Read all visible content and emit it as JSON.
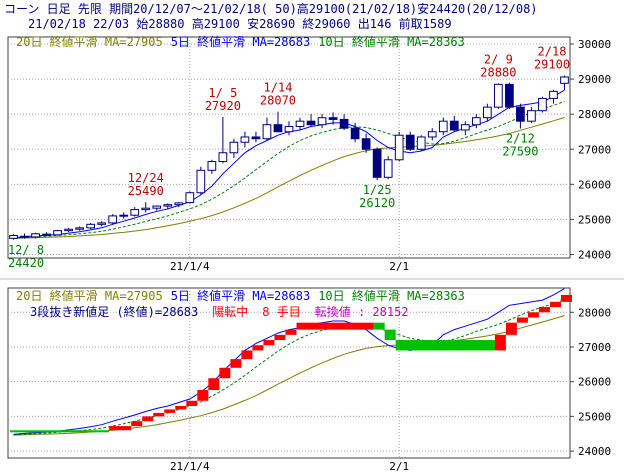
{
  "header": {
    "line1": "コーン 日足 先限 期間20/12/07～21/02/18( 50)高29100(21/02/18)安24420(20/12/08)",
    "line2": "21/02/18 22/03 始28880 高29100 安28690 終29060 出146 前取1589"
  },
  "colors": {
    "header_bg": "#f4f4f4",
    "text": "#000080",
    "ma20": "#808000",
    "ma5": "#0000ff",
    "ma10": "#008000",
    "up_candle": "#ffffff",
    "down_candle": "#000080",
    "brick_up": "#ff0000",
    "brick_down": "#00c000",
    "annot_high": "#c00000",
    "annot_low": "#008000",
    "grid": "#a0a0c0"
  },
  "chart_data": [
    {
      "type": "candlestick",
      "legend": [
        {
          "label": "20日 終値平滑 MA=27905",
          "color": "#808000"
        },
        {
          "label": "5日 終値平滑 MA=28683",
          "color": "#0000ff"
        },
        {
          "label": "10日 終値平滑 MA=28363",
          "color": "#008000"
        }
      ],
      "x_tick_labels": [
        "21/1/4",
        "2/1"
      ],
      "x_tick_index": [
        16,
        35
      ],
      "y_ticks": [
        24000,
        25000,
        26000,
        27000,
        28000,
        29000,
        30000
      ],
      "ylim": [
        23900,
        30200
      ],
      "grid": true,
      "candles": [
        [
          24460,
          24580,
          24420,
          24540
        ],
        [
          24520,
          24600,
          24450,
          24500
        ],
        [
          24500,
          24620,
          24460,
          24590
        ],
        [
          24580,
          24640,
          24520,
          24560
        ],
        [
          24560,
          24700,
          24540,
          24680
        ],
        [
          24680,
          24760,
          24640,
          24720
        ],
        [
          24720,
          24800,
          24680,
          24760
        ],
        [
          24760,
          24900,
          24720,
          24860
        ],
        [
          24860,
          24950,
          24800,
          24900
        ],
        [
          24900,
          25150,
          24860,
          25100
        ],
        [
          25100,
          25200,
          25020,
          25120
        ],
        [
          25120,
          25350,
          25080,
          25280
        ],
        [
          25280,
          25490,
          25200,
          25320
        ],
        [
          25320,
          25400,
          25250,
          25380
        ],
        [
          25380,
          25460,
          25300,
          25420
        ],
        [
          25420,
          25500,
          25350,
          25470
        ],
        [
          25480,
          25800,
          25450,
          25760
        ],
        [
          25760,
          26500,
          25700,
          26400
        ],
        [
          26400,
          26700,
          26300,
          26650
        ],
        [
          26650,
          27920,
          26600,
          26900
        ],
        [
          26900,
          27300,
          26750,
          27200
        ],
        [
          27200,
          27500,
          27050,
          27350
        ],
        [
          27350,
          27500,
          27200,
          27300
        ],
        [
          27300,
          27900,
          27250,
          27700
        ],
        [
          27700,
          28070,
          27500,
          27500
        ],
        [
          27500,
          27800,
          27400,
          27650
        ],
        [
          27650,
          27900,
          27550,
          27800
        ],
        [
          27800,
          28000,
          27650,
          27700
        ],
        [
          27700,
          28000,
          27600,
          27900
        ],
        [
          27900,
          28050,
          27700,
          27850
        ],
        [
          27850,
          28000,
          27550,
          27600
        ],
        [
          27600,
          27750,
          27200,
          27300
        ],
        [
          27300,
          27450,
          26900,
          27000
        ],
        [
          27000,
          27050,
          26120,
          26200
        ],
        [
          26200,
          26800,
          26150,
          26700
        ],
        [
          26700,
          27500,
          26650,
          27400
        ],
        [
          27400,
          27500,
          26950,
          27000
        ],
        [
          27000,
          27400,
          26950,
          27350
        ],
        [
          27350,
          27600,
          27250,
          27500
        ],
        [
          27500,
          27900,
          27400,
          27800
        ],
        [
          27800,
          27950,
          27500,
          27550
        ],
        [
          27550,
          27800,
          27400,
          27700
        ],
        [
          27700,
          28000,
          27600,
          27900
        ],
        [
          27900,
          28300,
          27800,
          28200
        ],
        [
          28200,
          28880,
          28150,
          28850
        ],
        [
          28850,
          28900,
          28150,
          28200
        ],
        [
          28200,
          28300,
          27590,
          27800
        ],
        [
          27800,
          28200,
          27750,
          28100
        ],
        [
          28100,
          28500,
          28050,
          28450
        ],
        [
          28450,
          28700,
          28300,
          28650
        ],
        [
          28880,
          29100,
          28690,
          29060
        ]
      ],
      "ma5": [
        24480,
        24510,
        24530,
        24550,
        24570,
        24610,
        24650,
        24700,
        24760,
        24860,
        24950,
        25040,
        25140,
        25230,
        25300,
        25400,
        25500,
        25700,
        25950,
        26300,
        26600,
        26900,
        27100,
        27250,
        27400,
        27500,
        27550,
        27650,
        27700,
        27750,
        27750,
        27650,
        27500,
        27250,
        27050,
        26950,
        26900,
        26950,
        27050,
        27350,
        27500,
        27600,
        27700,
        27800,
        28000,
        28200,
        28250,
        28300,
        28350,
        28500,
        28683
      ],
      "ma10": [
        24470,
        24480,
        24500,
        24520,
        24540,
        24560,
        24590,
        24620,
        24660,
        24720,
        24790,
        24860,
        24940,
        25020,
        25100,
        25200,
        25300,
        25420,
        25580,
        25760,
        25960,
        26180,
        26420,
        26650,
        26880,
        27080,
        27250,
        27380,
        27480,
        27560,
        27620,
        27640,
        27620,
        27550,
        27450,
        27350,
        27250,
        27200,
        27150,
        27160,
        27230,
        27330,
        27450,
        27550,
        27650,
        27780,
        27920,
        28050,
        28150,
        28250,
        28363
      ],
      "ma20": [
        24460,
        24470,
        24480,
        24490,
        24500,
        24510,
        24530,
        24550,
        24570,
        24600,
        24630,
        24670,
        24710,
        24760,
        24820,
        24880,
        24950,
        25020,
        25110,
        25210,
        25330,
        25460,
        25600,
        25760,
        25930,
        26090,
        26250,
        26400,
        26540,
        26670,
        26790,
        26880,
        26960,
        27010,
        27040,
        27060,
        27080,
        27090,
        27110,
        27140,
        27180,
        27220,
        27270,
        27320,
        27380,
        27450,
        27540,
        27630,
        27720,
        27810,
        27905
      ],
      "annotations": [
        {
          "text": "12/ 8",
          "value": "24420",
          "index": 0,
          "side": "low"
        },
        {
          "text": "12/24",
          "value": "25490",
          "index": 12,
          "side": "high"
        },
        {
          "text": "1/ 5",
          "value": "27920",
          "index": 19,
          "side": "high"
        },
        {
          "text": "1/14",
          "value": "28070",
          "index": 24,
          "side": "high"
        },
        {
          "text": "1/25",
          "value": "26120",
          "index": 33,
          "side": "low"
        },
        {
          "text": "2/ 9",
          "value": "28880",
          "index": 44,
          "side": "high"
        },
        {
          "text": "2/12",
          "value": "27590",
          "index": 46,
          "side": "low"
        },
        {
          "text": "2/18",
          "value": "29100",
          "index": 50,
          "side": "high"
        }
      ]
    },
    {
      "type": "three_line_break",
      "legend": [
        {
          "label": "20日 終値平滑 MA=27905",
          "color": "#808000"
        },
        {
          "label": "5日 終値平滑 MA=28683",
          "color": "#0000ff"
        },
        {
          "label": "10日 終値平滑 MA=28363",
          "color": "#008000"
        }
      ],
      "info": [
        {
          "label": "3段抜き新値足 (終値)=28683",
          "color": "#000080"
        },
        {
          "label": "陽転中",
          "color": "#ff0000"
        },
        {
          "label": "8 手目",
          "color": "#ff0000"
        },
        {
          "label": "転換値 : 28152",
          "color": "#c000c0"
        }
      ],
      "x_tick_labels": [
        "21/1/4",
        "2/1"
      ],
      "y_ticks": [
        24000,
        25000,
        26000,
        27000,
        28000
      ],
      "ylim": [
        23800,
        28700
      ],
      "grid": true,
      "baseline_value": 24540,
      "bricks": [
        {
          "from": 24540,
          "to": 24600,
          "dir": "down",
          "start": 0,
          "end": 9
        },
        {
          "from": 24600,
          "to": 24720,
          "dir": "up",
          "start": 9,
          "end": 11
        },
        {
          "from": 24720,
          "to": 24860,
          "dir": "up",
          "start": 11,
          "end": 12
        },
        {
          "from": 24860,
          "to": 25000,
          "dir": "up",
          "start": 12,
          "end": 13
        },
        {
          "from": 25000,
          "to": 25100,
          "dir": "up",
          "start": 13,
          "end": 14
        },
        {
          "from": 25100,
          "to": 25200,
          "dir": "up",
          "start": 14,
          "end": 15
        },
        {
          "from": 25200,
          "to": 25300,
          "dir": "up",
          "start": 15,
          "end": 16
        },
        {
          "from": 25300,
          "to": 25450,
          "dir": "up",
          "start": 16,
          "end": 17
        },
        {
          "from": 25450,
          "to": 25760,
          "dir": "up",
          "start": 17,
          "end": 18
        },
        {
          "from": 25760,
          "to": 26100,
          "dir": "up",
          "start": 18,
          "end": 19
        },
        {
          "from": 26100,
          "to": 26400,
          "dir": "up",
          "start": 19,
          "end": 20
        },
        {
          "from": 26400,
          "to": 26650,
          "dir": "up",
          "start": 20,
          "end": 21
        },
        {
          "from": 26650,
          "to": 26900,
          "dir": "up",
          "start": 21,
          "end": 22
        },
        {
          "from": 26900,
          "to": 27050,
          "dir": "up",
          "start": 22,
          "end": 23
        },
        {
          "from": 27050,
          "to": 27200,
          "dir": "up",
          "start": 23,
          "end": 24
        },
        {
          "from": 27200,
          "to": 27350,
          "dir": "up",
          "start": 24,
          "end": 25
        },
        {
          "from": 27350,
          "to": 27500,
          "dir": "up",
          "start": 25,
          "end": 26
        },
        {
          "from": 27500,
          "to": 27700,
          "dir": "up",
          "start": 26,
          "end": 33
        },
        {
          "from": 27700,
          "to": 27500,
          "dir": "down",
          "start": 33,
          "end": 34
        },
        {
          "from": 27500,
          "to": 27200,
          "dir": "down",
          "start": 34,
          "end": 35
        },
        {
          "from": 27200,
          "to": 26900,
          "dir": "down",
          "start": 35,
          "end": 44
        },
        {
          "from": 26900,
          "to": 27350,
          "dir": "up",
          "start": 44,
          "end": 45
        },
        {
          "from": 27350,
          "to": 27700,
          "dir": "up",
          "start": 45,
          "end": 46
        },
        {
          "from": 27700,
          "to": 27850,
          "dir": "up",
          "start": 46,
          "end": 47
        },
        {
          "from": 27850,
          "to": 28000,
          "dir": "up",
          "start": 47,
          "end": 48
        },
        {
          "from": 28000,
          "to": 28150,
          "dir": "up",
          "start": 48,
          "end": 49
        },
        {
          "from": 28150,
          "to": 28300,
          "dir": "up",
          "start": 49,
          "end": 50
        },
        {
          "from": 28300,
          "to": 28500,
          "dir": "up",
          "start": 50,
          "end": 51
        }
      ],
      "ma_series": [
        "ma5",
        "ma10",
        "ma20"
      ]
    }
  ]
}
